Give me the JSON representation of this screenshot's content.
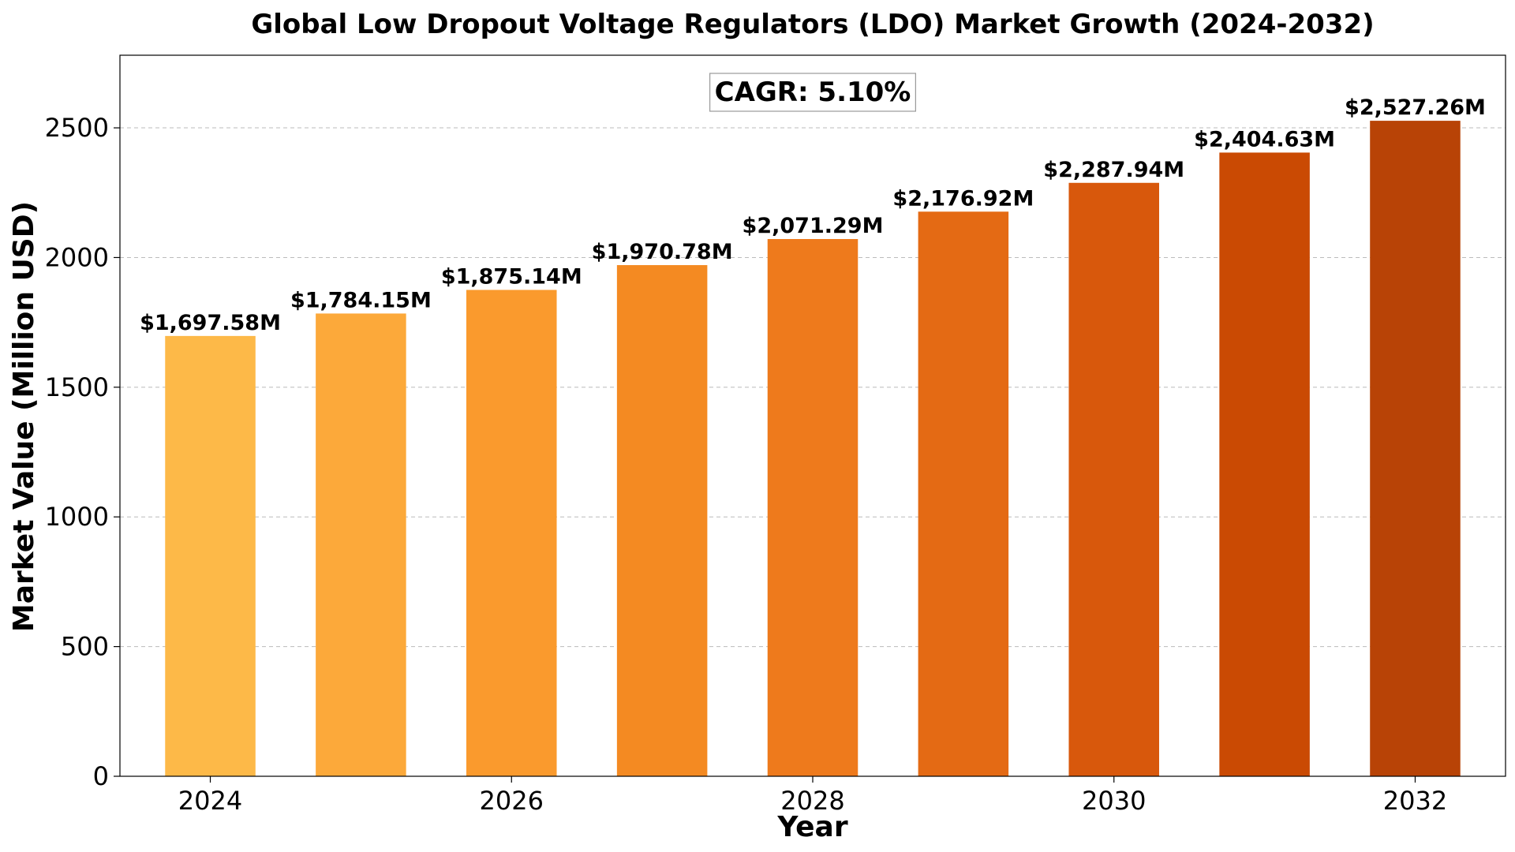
{
  "chart_data": {
    "type": "bar",
    "title": "Global Low Dropout Voltage Regulators (LDO) Market Growth (2024-2032)",
    "xlabel": "Year",
    "ylabel": "Market Value (Million USD)",
    "categories": [
      2024,
      2025,
      2026,
      2027,
      2028,
      2029,
      2030,
      2031,
      2032
    ],
    "values": [
      1697.58,
      1784.15,
      1875.14,
      1970.78,
      2071.29,
      2176.92,
      2287.94,
      2404.63,
      2527.26
    ],
    "data_labels": [
      "$1,697.58M",
      "$1,784.15M",
      "$1,875.14M",
      "$1,970.78M",
      "$2,071.29M",
      "$2,176.92M",
      "$2,287.94M",
      "$2,404.63M",
      "$2,527.26M"
    ],
    "xticks": [
      2024,
      2026,
      2028,
      2030,
      2032
    ],
    "yticks": [
      0,
      500,
      1000,
      1500,
      2000,
      2500
    ],
    "ylim": [
      0,
      2780
    ],
    "xlim": [
      2023.4,
      2032.6
    ],
    "grid": "y-dashed",
    "annotation": "CAGR: 5.10%",
    "colors": [
      "#FDB948",
      "#FCA93A",
      "#FA9A2D",
      "#F48A22",
      "#EE7A1C",
      "#E46A14",
      "#D8580C",
      "#CA4A03",
      "#B84306"
    ]
  }
}
